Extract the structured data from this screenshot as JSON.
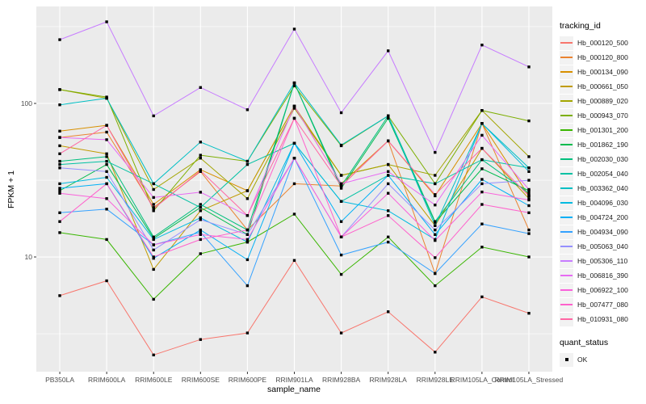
{
  "chart_data": {
    "type": "line",
    "title": "",
    "xlabel": "sample_name",
    "ylabel": "FPKM + 1",
    "y_scale": "log10",
    "y_ticks": [
      10,
      100
    ],
    "y_minor": [
      3.162,
      31.62,
      316.2
    ],
    "ylim": [
      1.79,
      428
    ],
    "grid": true,
    "panel_bg": "#ebebeb",
    "grid_color": "#ffffff",
    "tick_color": "#333333",
    "marker": "black-square",
    "marker_color": "#000000",
    "legend_title": "tracking_id",
    "legend_position": "right",
    "quant_legend_title": "quant_status",
    "quant_legend_items": [
      "OK"
    ],
    "categories": [
      "PB350LA",
      "RRIM600LA",
      "RRIM600LE",
      "RRIM600SE",
      "RRIM600PE",
      "RRIM901LA",
      "RRIM928BA",
      "RRIM928LA",
      "RRIM928LE",
      "RRIM105LA_Control",
      "RRIM105LA_Stressed"
    ],
    "series": [
      {
        "name": "Hb_000120_500",
        "color": "#F8766D",
        "values": [
          5.6,
          7.0,
          2.3,
          2.9,
          3.2,
          9.5,
          3.2,
          4.4,
          2.4,
          5.5,
          4.3
        ]
      },
      {
        "name": "Hb_000120_800",
        "color": "#EA8331",
        "values": [
          60,
          65,
          21,
          36,
          15,
          30,
          29,
          57,
          7.8,
          74,
          15
        ]
      },
      {
        "name": "Hb_000134_090",
        "color": "#D89000",
        "values": [
          66,
          72,
          22,
          37,
          27,
          96,
          30,
          57,
          25,
          74,
          25
        ]
      },
      {
        "name": "Hb_000661_050",
        "color": "#C09B00",
        "values": [
          53,
          47,
          8.3,
          20,
          27,
          96,
          34,
          40,
          16,
          51,
          24
        ]
      },
      {
        "name": "Hb_000889_020",
        "color": "#A3A500",
        "values": [
          123,
          108,
          27.5,
          44,
          24,
          93,
          34,
          40,
          34,
          90,
          45
        ]
      },
      {
        "name": "Hb_000943_070",
        "color": "#7CAE00",
        "values": [
          123,
          110,
          20,
          46,
          42,
          130,
          53,
          83,
          30,
          90,
          77
        ]
      },
      {
        "name": "Hb_001301_200",
        "color": "#39B600",
        "values": [
          14.4,
          13,
          5.3,
          10.5,
          12.5,
          19,
          7.7,
          13.5,
          6.5,
          11.6,
          10
        ]
      },
      {
        "name": "Hb_001862_190",
        "color": "#00BB4E",
        "values": [
          27,
          40,
          13.2,
          21,
          14,
          136,
          28,
          80,
          16.8,
          37.5,
          27
        ]
      },
      {
        "name": "Hb_002030_030",
        "color": "#00BF7D",
        "values": [
          42,
          45,
          13.5,
          22,
          15,
          136,
          29,
          83,
          17,
          43,
          26
        ]
      },
      {
        "name": "Hb_002054_040",
        "color": "#00C1A3",
        "values": [
          40,
          42,
          30,
          21,
          40,
          55,
          23,
          34,
          30,
          43,
          38
        ]
      },
      {
        "name": "Hb_003362_040",
        "color": "#00BFC4",
        "values": [
          98,
          108,
          30,
          56,
          42,
          136,
          53.5,
          83,
          16,
          74,
          38
        ]
      },
      {
        "name": "Hb_004096_030",
        "color": "#00BAE0",
        "values": [
          30,
          33,
          13,
          18,
          12.5,
          55,
          23,
          20,
          13,
          74,
          36
        ]
      },
      {
        "name": "Hb_004724_200",
        "color": "#00B0F6",
        "values": [
          28,
          30,
          9.8,
          15,
          9.6,
          55,
          17,
          34,
          14,
          32,
          21.6
        ]
      },
      {
        "name": "Hb_004934_090",
        "color": "#35A2FF",
        "values": [
          19.4,
          20.5,
          12,
          14.5,
          6.5,
          44,
          10.3,
          12.5,
          7.8,
          16.4,
          14.2
        ]
      },
      {
        "name": "Hb_005063_040",
        "color": "#9590FF",
        "values": [
          38,
          36,
          11.1,
          17.5,
          14,
          44,
          13.5,
          30,
          15,
          30,
          31.6
        ]
      },
      {
        "name": "Hb_005306_110",
        "color": "#C77CFF",
        "values": [
          260,
          340,
          83,
          127,
          91,
          305,
          87,
          220,
          48,
          240,
          173
        ]
      },
      {
        "name": "Hb_006816_390",
        "color": "#E76BF3",
        "values": [
          60,
          58,
          24.4,
          26.4,
          18.6,
          96,
          30,
          36,
          21.8,
          62,
          27.5
        ]
      },
      {
        "name": "Hb_006922_100",
        "color": "#FA62DB",
        "values": [
          26,
          24,
          12,
          14,
          13,
          44,
          13.5,
          26,
          12.8,
          26.5,
          23.5
        ]
      },
      {
        "name": "Hb_007477_080",
        "color": "#FF61CC",
        "values": [
          17,
          30,
          10,
          13,
          15,
          80,
          13.5,
          18.6,
          9.9,
          22,
          19.4
        ]
      },
      {
        "name": "Hb_010931_080",
        "color": "#FF67A4",
        "values": [
          47,
          72,
          20.6,
          36.5,
          18.6,
          80,
          29,
          57,
          25.5,
          51,
          25
        ]
      }
    ]
  }
}
